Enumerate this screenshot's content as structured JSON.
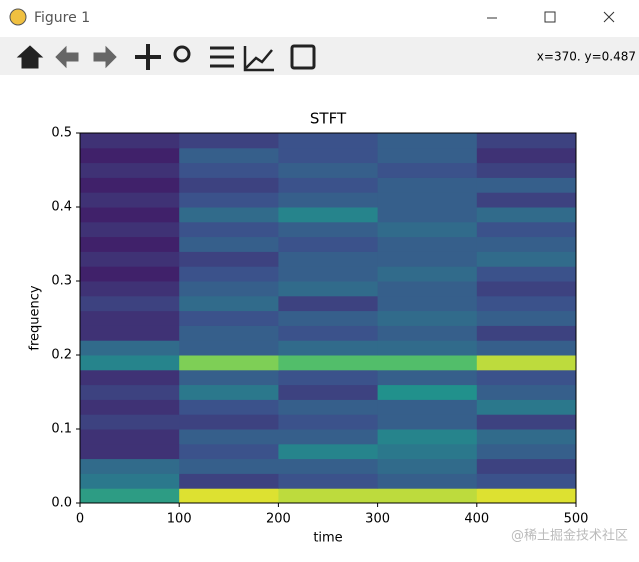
{
  "window": {
    "title": "Figure 1"
  },
  "toolbar": {
    "status": "x=370. y=0.487"
  },
  "watermark": "@稀土掘金技术社区",
  "chart_data": {
    "type": "heatmap",
    "title": "STFT",
    "x_label": "time",
    "y_label": "frequency",
    "xbins": [
      0,
      100,
      200,
      300,
      400,
      500
    ],
    "ybins": [
      0,
      0.02,
      0.04,
      0.06,
      0.08,
      0.1,
      0.12,
      0.14,
      0.16,
      0.18,
      0.2,
      0.22,
      0.24,
      0.26,
      0.28,
      0.3,
      0.32,
      0.34,
      0.36,
      0.38,
      0.4,
      0.42,
      0.44,
      0.46,
      0.48,
      0.5
    ],
    "z": [
      [
        0.55,
        0.95,
        0.9,
        0.9,
        0.95
      ],
      [
        0.4,
        0.2,
        0.25,
        0.3,
        0.25
      ],
      [
        0.35,
        0.3,
        0.3,
        0.35,
        0.2
      ],
      [
        0.15,
        0.25,
        0.45,
        0.4,
        0.3
      ],
      [
        0.15,
        0.3,
        0.3,
        0.45,
        0.35
      ],
      [
        0.2,
        0.2,
        0.25,
        0.3,
        0.2
      ],
      [
        0.15,
        0.25,
        0.3,
        0.3,
        0.4
      ],
      [
        0.2,
        0.4,
        0.2,
        0.5,
        0.3
      ],
      [
        0.15,
        0.3,
        0.25,
        0.3,
        0.25
      ],
      [
        0.45,
        0.8,
        0.7,
        0.7,
        0.9
      ],
      [
        0.35,
        0.3,
        0.35,
        0.35,
        0.3
      ],
      [
        0.15,
        0.3,
        0.25,
        0.3,
        0.2
      ],
      [
        0.15,
        0.25,
        0.3,
        0.35,
        0.3
      ],
      [
        0.2,
        0.35,
        0.2,
        0.3,
        0.25
      ],
      [
        0.15,
        0.3,
        0.35,
        0.3,
        0.2
      ],
      [
        0.1,
        0.25,
        0.3,
        0.35,
        0.25
      ],
      [
        0.15,
        0.2,
        0.3,
        0.3,
        0.35
      ],
      [
        0.1,
        0.3,
        0.25,
        0.3,
        0.3
      ],
      [
        0.15,
        0.25,
        0.3,
        0.35,
        0.25
      ],
      [
        0.1,
        0.35,
        0.45,
        0.3,
        0.35
      ],
      [
        0.15,
        0.25,
        0.3,
        0.3,
        0.2
      ],
      [
        0.1,
        0.2,
        0.25,
        0.3,
        0.3
      ],
      [
        0.15,
        0.25,
        0.3,
        0.25,
        0.2
      ],
      [
        0.1,
        0.3,
        0.25,
        0.3,
        0.15
      ],
      [
        0.15,
        0.2,
        0.25,
        0.3,
        0.2
      ]
    ],
    "colormap": "viridis",
    "clim": [
      0,
      1
    ],
    "xlim": [
      0,
      500
    ],
    "ylim": [
      0,
      0.5
    ],
    "xticks": [
      0,
      100,
      200,
      300,
      400,
      500
    ],
    "yticks": [
      {
        "value": 0,
        "label": "0.0"
      },
      0.1,
      0.2,
      0.3,
      0.4,
      0.5
    ]
  }
}
